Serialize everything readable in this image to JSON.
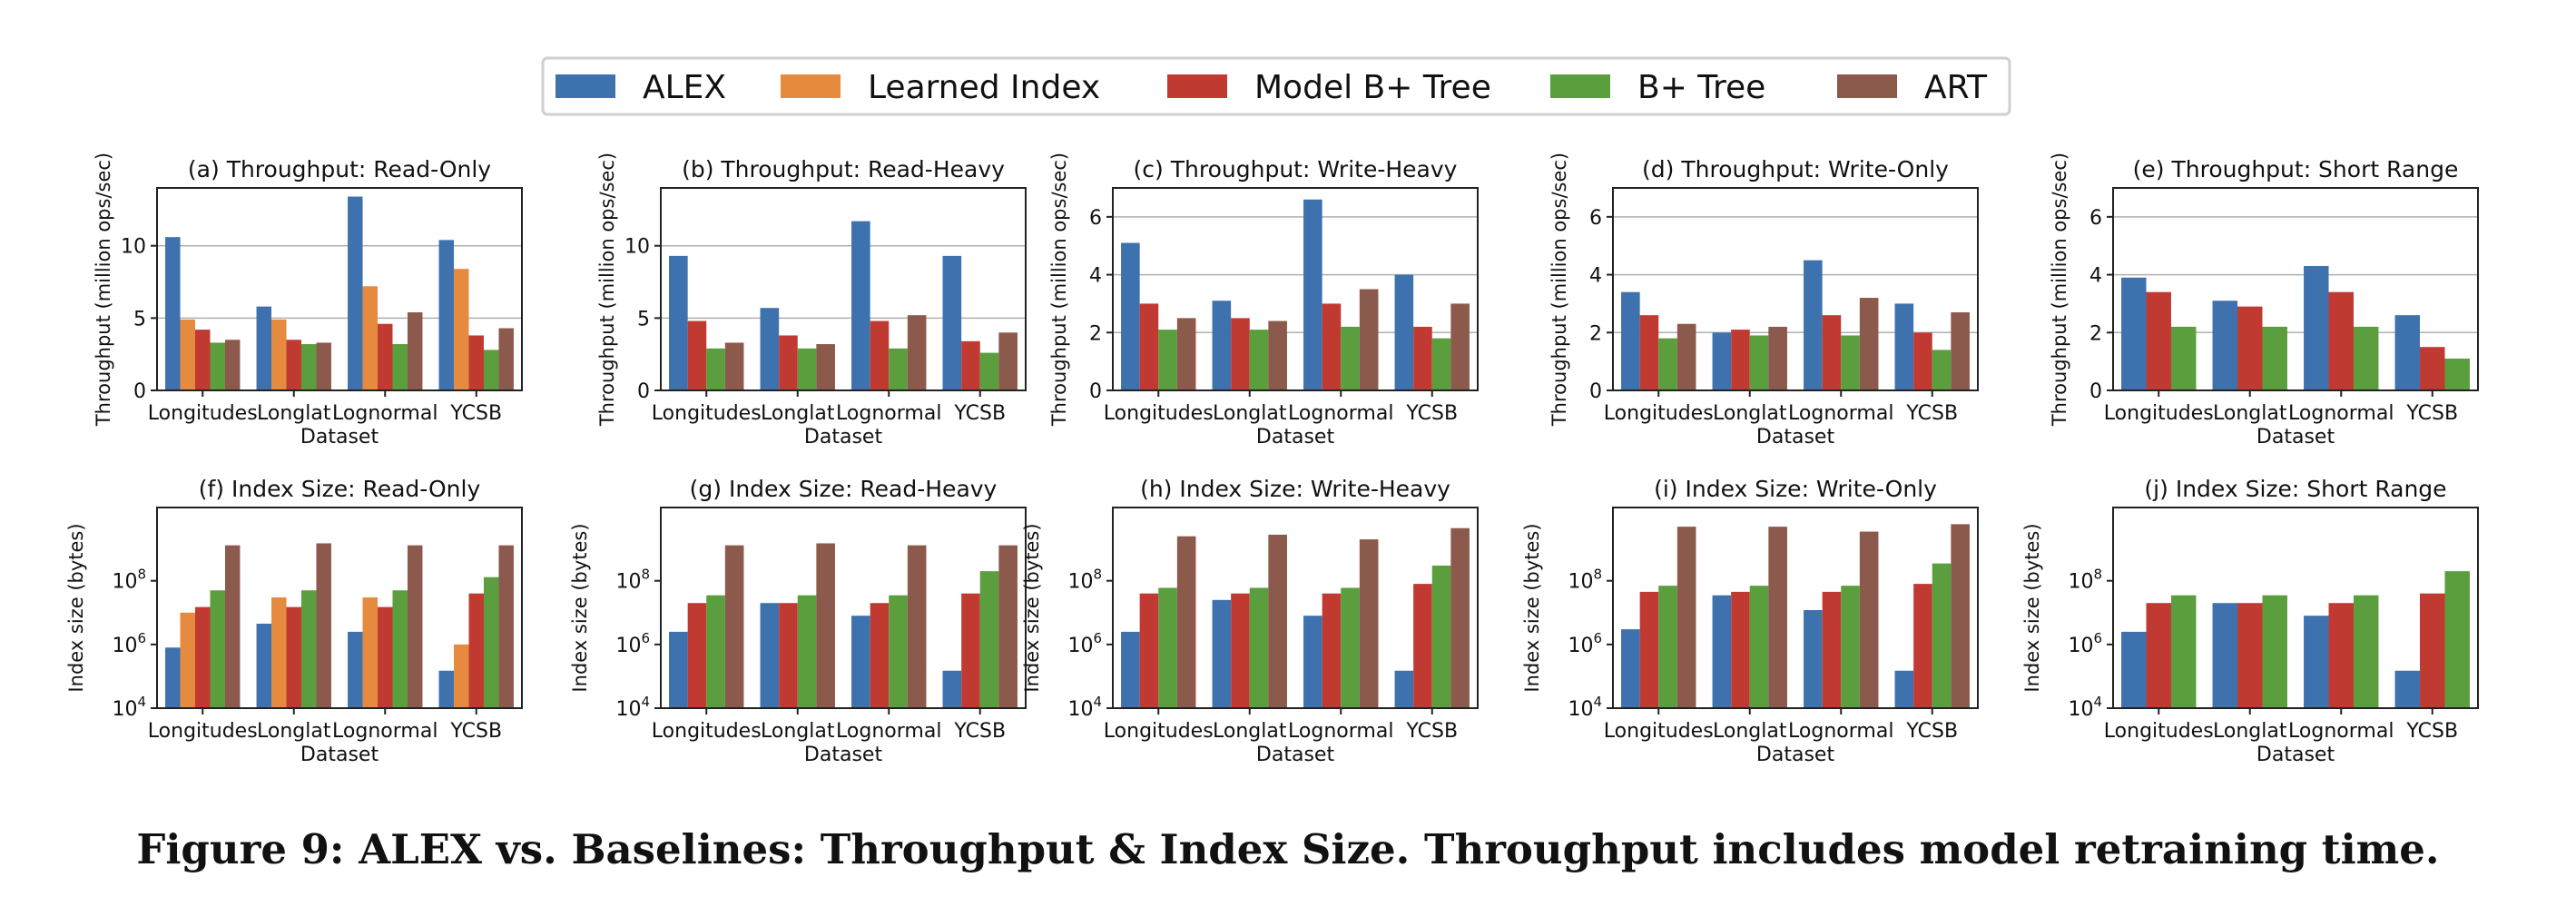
{
  "figure": {
    "caption": "Figure 9: ALEX vs. Baselines: Throughput & Index Size. Throughput includes model retraining time."
  },
  "legend": {
    "items": [
      {
        "name": "ALEX",
        "color": "#3d72ae"
      },
      {
        "name": "Learned Index",
        "color": "#e58a3e"
      },
      {
        "name": "Model B+ Tree",
        "color": "#c13a32"
      },
      {
        "name": "B+ Tree",
        "color": "#5a9e3e"
      },
      {
        "name": "ART",
        "color": "#8c5a4c"
      }
    ]
  },
  "chart_data": [
    {
      "type": "bar",
      "title": "(a) Throughput: Read-Only",
      "xlabel": "Dataset",
      "ylabel": "Throughput (million ops/sec)",
      "categories": [
        "Longitudes",
        "Longlat",
        "Lognormal",
        "YCSB"
      ],
      "ylim": [
        0,
        14
      ],
      "yscale": "linear",
      "yticks": [
        0,
        5,
        10
      ],
      "ytick_labels": [
        "0",
        "5",
        "10"
      ],
      "grid": true,
      "series": [
        {
          "name": "ALEX",
          "values": [
            10.6,
            5.8,
            13.4,
            10.4
          ]
        },
        {
          "name": "Learned Index",
          "values": [
            4.9,
            4.9,
            7.2,
            8.4
          ]
        },
        {
          "name": "Model B+ Tree",
          "values": [
            4.2,
            3.5,
            4.6,
            3.8
          ]
        },
        {
          "name": "B+ Tree",
          "values": [
            3.3,
            3.2,
            3.2,
            2.8
          ]
        },
        {
          "name": "ART",
          "values": [
            3.5,
            3.3,
            5.4,
            4.3
          ]
        }
      ]
    },
    {
      "type": "bar",
      "title": "(b) Throughput: Read-Heavy",
      "xlabel": "Dataset",
      "ylabel": "Throughput (million ops/sec)",
      "categories": [
        "Longitudes",
        "Longlat",
        "Lognormal",
        "YCSB"
      ],
      "ylim": [
        0,
        14
      ],
      "yscale": "linear",
      "yticks": [
        0,
        5,
        10
      ],
      "ytick_labels": [
        "0",
        "5",
        "10"
      ],
      "grid": true,
      "series": [
        {
          "name": "ALEX",
          "values": [
            9.3,
            5.7,
            11.7,
            9.3
          ]
        },
        {
          "name": "Model B+ Tree",
          "values": [
            4.8,
            3.8,
            4.8,
            3.4
          ]
        },
        {
          "name": "B+ Tree",
          "values": [
            2.9,
            2.9,
            2.9,
            2.6
          ]
        },
        {
          "name": "ART",
          "values": [
            3.3,
            3.2,
            5.2,
            4.0
          ]
        }
      ]
    },
    {
      "type": "bar",
      "title": "(c) Throughput: Write-Heavy",
      "xlabel": "Dataset",
      "ylabel": "Throughput (million ops/sec)",
      "categories": [
        "Longitudes",
        "Longlat",
        "Lognormal",
        "YCSB"
      ],
      "ylim": [
        0,
        7
      ],
      "yscale": "linear",
      "yticks": [
        0,
        2,
        4,
        6
      ],
      "ytick_labels": [
        "0",
        "2",
        "4",
        "6"
      ],
      "grid": true,
      "series": [
        {
          "name": "ALEX",
          "values": [
            5.1,
            3.1,
            6.6,
            4.0
          ]
        },
        {
          "name": "Model B+ Tree",
          "values": [
            3.0,
            2.5,
            3.0,
            2.2
          ]
        },
        {
          "name": "B+ Tree",
          "values": [
            2.1,
            2.1,
            2.2,
            1.8
          ]
        },
        {
          "name": "ART",
          "values": [
            2.5,
            2.4,
            3.5,
            3.0
          ]
        }
      ]
    },
    {
      "type": "bar",
      "title": "(d) Throughput: Write-Only",
      "xlabel": "Dataset",
      "ylabel": "Throughput (million ops/sec)",
      "categories": [
        "Longitudes",
        "Longlat",
        "Lognormal",
        "YCSB"
      ],
      "ylim": [
        0,
        7
      ],
      "yscale": "linear",
      "yticks": [
        0,
        2,
        4,
        6
      ],
      "ytick_labels": [
        "0",
        "2",
        "4",
        "6"
      ],
      "grid": true,
      "series": [
        {
          "name": "ALEX",
          "values": [
            3.4,
            2.0,
            4.5,
            3.0
          ]
        },
        {
          "name": "Model B+ Tree",
          "values": [
            2.6,
            2.1,
            2.6,
            2.0
          ]
        },
        {
          "name": "B+ Tree",
          "values": [
            1.8,
            1.9,
            1.9,
            1.4
          ]
        },
        {
          "name": "ART",
          "values": [
            2.3,
            2.2,
            3.2,
            2.7
          ]
        }
      ]
    },
    {
      "type": "bar",
      "title": "(e) Throughput: Short Range",
      "xlabel": "Dataset",
      "ylabel": "Throughput (million ops/sec)",
      "categories": [
        "Longitudes",
        "Longlat",
        "Lognormal",
        "YCSB"
      ],
      "ylim": [
        0,
        7
      ],
      "yscale": "linear",
      "yticks": [
        0,
        2,
        4,
        6
      ],
      "ytick_labels": [
        "0",
        "2",
        "4",
        "6"
      ],
      "grid": true,
      "series": [
        {
          "name": "ALEX",
          "values": [
            3.9,
            3.1,
            4.3,
            2.6
          ]
        },
        {
          "name": "Model B+ Tree",
          "values": [
            3.4,
            2.9,
            3.4,
            1.5
          ]
        },
        {
          "name": "B+ Tree",
          "values": [
            2.2,
            2.2,
            2.2,
            1.1
          ]
        }
      ]
    },
    {
      "type": "bar",
      "title": "(f) Index Size: Read-Only",
      "xlabel": "Dataset",
      "ylabel": "Index size (bytes)",
      "categories": [
        "Longitudes",
        "Longlat",
        "Lognormal",
        "YCSB"
      ],
      "ylim": [
        10000,
        20000000000
      ],
      "yscale": "log",
      "yticks": [
        10000,
        1000000,
        100000000
      ],
      "ytick_labels": [
        "10^4",
        "10^6",
        "10^8"
      ],
      "grid": false,
      "series": [
        {
          "name": "ALEX",
          "values": [
            800000,
            4500000,
            2500000,
            150000
          ]
        },
        {
          "name": "Learned Index",
          "values": [
            10000000,
            30000000,
            30000000,
            1000000
          ]
        },
        {
          "name": "Model B+ Tree",
          "values": [
            15000000,
            15000000,
            15000000,
            40000000
          ]
        },
        {
          "name": "B+ Tree",
          "values": [
            50000000,
            50000000,
            50000000,
            130000000
          ]
        },
        {
          "name": "ART",
          "values": [
            1300000000,
            1500000000,
            1300000000,
            1300000000
          ]
        }
      ]
    },
    {
      "type": "bar",
      "title": "(g) Index Size: Read-Heavy",
      "xlabel": "Dataset",
      "ylabel": "Index size (bytes)",
      "categories": [
        "Longitudes",
        "Longlat",
        "Lognormal",
        "YCSB"
      ],
      "ylim": [
        10000,
        20000000000
      ],
      "yscale": "log",
      "yticks": [
        10000,
        1000000,
        100000000
      ],
      "ytick_labels": [
        "10^4",
        "10^6",
        "10^8"
      ],
      "grid": false,
      "series": [
        {
          "name": "ALEX",
          "values": [
            2500000,
            20000000,
            8000000,
            150000
          ]
        },
        {
          "name": "Model B+ Tree",
          "values": [
            20000000,
            20000000,
            20000000,
            40000000
          ]
        },
        {
          "name": "B+ Tree",
          "values": [
            35000000,
            35000000,
            35000000,
            200000000
          ]
        },
        {
          "name": "ART",
          "values": [
            1300000000,
            1500000000,
            1300000000,
            1300000000
          ]
        }
      ]
    },
    {
      "type": "bar",
      "title": "(h) Index Size: Write-Heavy",
      "xlabel": "Dataset",
      "ylabel": "Index size (bytes)",
      "categories": [
        "Longitudes",
        "Longlat",
        "Lognormal",
        "YCSB"
      ],
      "ylim": [
        10000,
        20000000000
      ],
      "yscale": "log",
      "yticks": [
        10000,
        1000000,
        100000000
      ],
      "ytick_labels": [
        "10^4",
        "10^6",
        "10^8"
      ],
      "grid": false,
      "series": [
        {
          "name": "ALEX",
          "values": [
            2500000,
            25000000,
            8000000,
            150000
          ]
        },
        {
          "name": "Model B+ Tree",
          "values": [
            40000000,
            40000000,
            40000000,
            80000000
          ]
        },
        {
          "name": "B+ Tree",
          "values": [
            60000000,
            60000000,
            60000000,
            300000000
          ]
        },
        {
          "name": "ART",
          "values": [
            2500000000,
            2800000000,
            2000000000,
            4500000000
          ]
        }
      ]
    },
    {
      "type": "bar",
      "title": "(i) Index Size: Write-Only",
      "xlabel": "Dataset",
      "ylabel": "Index size (bytes)",
      "categories": [
        "Longitudes",
        "Longlat",
        "Lognormal",
        "YCSB"
      ],
      "ylim": [
        10000,
        20000000000
      ],
      "yscale": "log",
      "yticks": [
        10000,
        1000000,
        100000000
      ],
      "ytick_labels": [
        "10^4",
        "10^6",
        "10^8"
      ],
      "grid": false,
      "series": [
        {
          "name": "ALEX",
          "values": [
            3000000,
            35000000,
            12000000,
            150000
          ]
        },
        {
          "name": "Model B+ Tree",
          "values": [
            45000000,
            45000000,
            45000000,
            80000000
          ]
        },
        {
          "name": "B+ Tree",
          "values": [
            70000000,
            70000000,
            70000000,
            350000000
          ]
        },
        {
          "name": "ART",
          "values": [
            5000000000,
            5000000000,
            3500000000,
            6000000000
          ]
        }
      ]
    },
    {
      "type": "bar",
      "title": "(j) Index Size: Short Range",
      "xlabel": "Dataset",
      "ylabel": "Index size (bytes)",
      "categories": [
        "Longitudes",
        "Longlat",
        "Lognormal",
        "YCSB"
      ],
      "ylim": [
        10000,
        20000000000
      ],
      "yscale": "log",
      "yticks": [
        10000,
        1000000,
        100000000
      ],
      "ytick_labels": [
        "10^4",
        "10^6",
        "10^8"
      ],
      "grid": false,
      "series": [
        {
          "name": "ALEX",
          "values": [
            2500000,
            20000000,
            8000000,
            150000
          ]
        },
        {
          "name": "Model B+ Tree",
          "values": [
            20000000,
            20000000,
            20000000,
            40000000
          ]
        },
        {
          "name": "B+ Tree",
          "values": [
            35000000,
            35000000,
            35000000,
            200000000
          ]
        }
      ]
    }
  ]
}
